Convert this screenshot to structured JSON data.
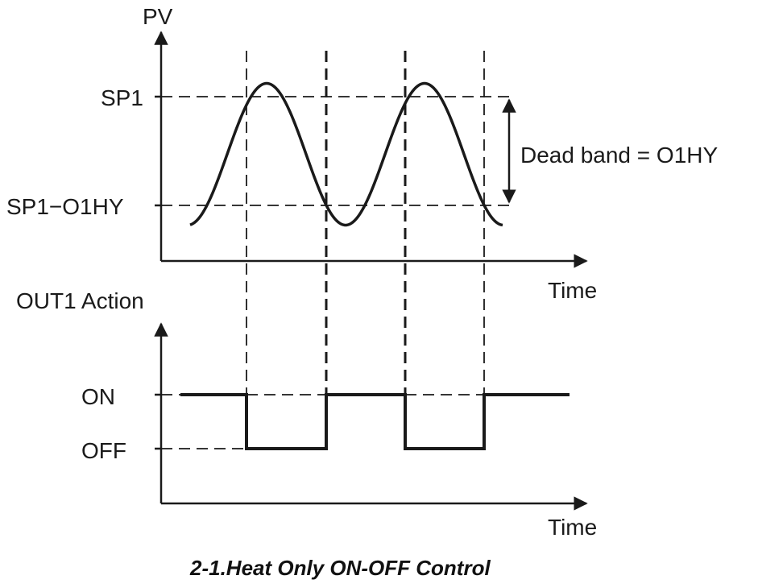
{
  "top_axis": {
    "y_label": "PV",
    "x_label": "Time"
  },
  "levels": {
    "sp1": "SP1",
    "sp1_minus_hy": "SP1−O1HY"
  },
  "dead_band": {
    "label": "Dead band = O1HY"
  },
  "bottom_axis": {
    "y_label": "OUT1 Action",
    "x_label": "Time"
  },
  "states": {
    "on": "ON",
    "off": "OFF"
  },
  "caption": "2-1.Heat Only ON-OFF Control",
  "colors": {
    "line": "#1a1a1a",
    "background": "#ffffff"
  }
}
